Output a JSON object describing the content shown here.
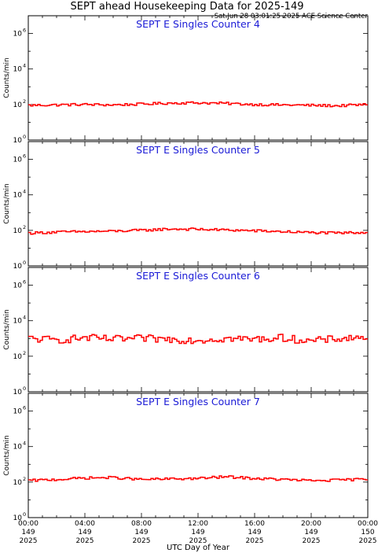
{
  "title": "SEPT ahead Housekeeping Data for 2025-149",
  "timestamp": "Sat Jun 28 03:01:25 2025 ACE Science Center",
  "xlabel": "UTC Day of Year",
  "ylabel": "Counts/min",
  "colors": {
    "series": "#ff0000",
    "panel_title": "#1a1ad6",
    "axes": "#000000"
  },
  "x_ticks": [
    {
      "time": "00:00",
      "doy": "149",
      "year": "2025"
    },
    {
      "time": "04:00",
      "doy": "149",
      "year": "2025"
    },
    {
      "time": "08:00",
      "doy": "149",
      "year": "2025"
    },
    {
      "time": "12:00",
      "doy": "149",
      "year": "2025"
    },
    {
      "time": "16:00",
      "doy": "149",
      "year": "2025"
    },
    {
      "time": "20:00",
      "doy": "149",
      "year": "2025"
    },
    {
      "time": "00:00",
      "doy": "150",
      "year": "2025"
    }
  ],
  "y_ticks": [
    {
      "base": "10",
      "exp": "0"
    },
    {
      "base": "10",
      "exp": "2"
    },
    {
      "base": "10",
      "exp": "4"
    },
    {
      "base": "10",
      "exp": "6"
    }
  ],
  "chart_data": [
    {
      "type": "line",
      "title": "SEPT E Singles Counter 4",
      "xlabel": "UTC Day of Year",
      "ylabel": "Counts/min",
      "y_scale": "log",
      "ylim": [
        1,
        10000000
      ],
      "xlim": [
        0,
        24
      ],
      "x_unit": "hours UTC from 2025-149 00:00",
      "step": "staircase (one value per ~10-minute interval)",
      "series": [
        {
          "x": [
            0,
            2,
            4,
            6,
            8,
            10,
            12,
            14,
            16,
            18,
            20,
            22,
            24
          ],
          "values": [
            90,
            95,
            100,
            95,
            105,
            120,
            125,
            115,
            100,
            95,
            90,
            85,
            100
          ]
        }
      ]
    },
    {
      "type": "line",
      "title": "SEPT E Singles Counter 5",
      "xlabel": "UTC Day of Year",
      "ylabel": "Counts/min",
      "y_scale": "log",
      "ylim": [
        1,
        10000000
      ],
      "xlim": [
        0,
        24
      ],
      "x_unit": "hours UTC from 2025-149 00:00",
      "step": "staircase (one value per ~10-minute interval)",
      "series": [
        {
          "x": [
            0,
            2,
            4,
            6,
            8,
            10,
            12,
            14,
            16,
            18,
            20,
            22,
            24
          ],
          "values": [
            70,
            80,
            85,
            90,
            100,
            120,
            115,
            105,
            95,
            85,
            75,
            70,
            80
          ]
        }
      ]
    },
    {
      "type": "line",
      "title": "SEPT E Singles Counter 6",
      "xlabel": "UTC Day of Year",
      "ylabel": "Counts/min",
      "y_scale": "log",
      "ylim": [
        1,
        10000000
      ],
      "xlim": [
        0,
        24
      ],
      "x_unit": "hours UTC from 2025-149 00:00",
      "step": "staircase (one value per ~10-minute interval)",
      "series": [
        {
          "x": [
            0,
            2,
            4,
            6,
            8,
            10,
            12,
            14,
            16,
            18,
            20,
            22,
            24
          ],
          "values": [
            1000,
            800,
            1100,
            900,
            1000,
            900,
            800,
            1000,
            900,
            1100,
            700,
            1000,
            1200
          ]
        }
      ]
    },
    {
      "type": "line",
      "title": "SEPT E Singles Counter 7",
      "xlabel": "UTC Day of Year",
      "ylabel": "Counts/min",
      "y_scale": "log",
      "ylim": [
        1,
        10000000
      ],
      "xlim": [
        0,
        24
      ],
      "x_unit": "hours UTC from 2025-149 00:00",
      "step": "staircase (one value per ~10-minute interval)",
      "series": [
        {
          "x": [
            0,
            2,
            4,
            6,
            8,
            10,
            12,
            14,
            16,
            18,
            20,
            22,
            24
          ],
          "values": [
            120,
            140,
            170,
            180,
            140,
            150,
            160,
            200,
            160,
            140,
            120,
            130,
            150
          ]
        }
      ]
    }
  ]
}
